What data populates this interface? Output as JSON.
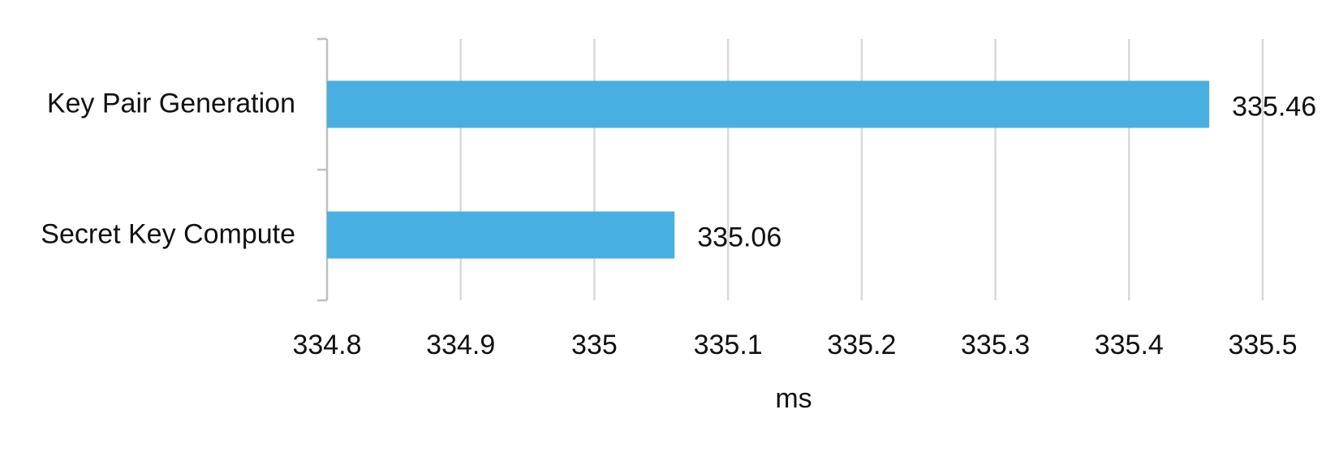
{
  "chart_data": {
    "type": "bar",
    "orientation": "horizontal",
    "categories": [
      "Key Pair Generation",
      "Secret Key Compute"
    ],
    "values": [
      335.46,
      335.06
    ],
    "data_labels": [
      "335.46",
      "335.06"
    ],
    "xlabel": "ms",
    "xlim": [
      334.8,
      335.5
    ],
    "x_ticks": [
      334.8,
      334.9,
      335,
      335.1,
      335.2,
      335.3,
      335.4,
      335.5
    ],
    "x_tick_labels": [
      "334.8",
      "334.9",
      "335",
      "335.1",
      "335.2",
      "335.3",
      "335.4",
      "335.5"
    ],
    "grid": "vertical",
    "legend": "none",
    "bar_color": "#48B0E0",
    "grid_color": "#D9D9D9",
    "axis_color": "#BFBFBF"
  }
}
